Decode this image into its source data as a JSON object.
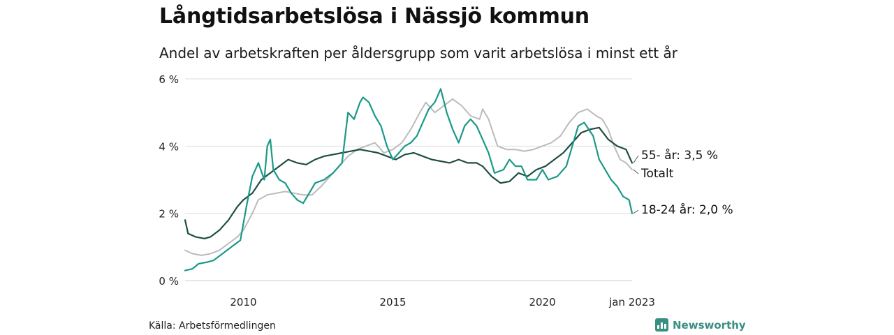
{
  "header": {
    "title": "Långtidsarbetslösa i Nässjö kommun",
    "subtitle": "Andel av arbetskraften per åldersgrupp som varit arbetslösa i minst ett år"
  },
  "footer": {
    "source": "Källa: Arbetsförmedlingen",
    "brand": "Newsworthy",
    "brand_icon": "bar-chart-logo-icon"
  },
  "chart_data": {
    "type": "line",
    "ylim": [
      0,
      6
    ],
    "xlim": [
      2008.05,
      2023.0
    ],
    "yticks": [
      {
        "value": 0,
        "label": "0 %"
      },
      {
        "value": 2,
        "label": "2 %"
      },
      {
        "value": 4,
        "label": "4 %"
      },
      {
        "value": 6,
        "label": "6 %"
      }
    ],
    "xticks": [
      {
        "value": 2010,
        "label": "2010"
      },
      {
        "value": 2015,
        "label": "2015"
      },
      {
        "value": 2020,
        "label": "2020"
      },
      {
        "value": 2023.0,
        "label": "jan 2023"
      }
    ],
    "grid": "horizontal",
    "series": [
      {
        "name": "Totalt",
        "end_label": "Totalt",
        "color": "#bbbbbb",
        "points": [
          [
            2008.05,
            0.9
          ],
          [
            2008.3,
            0.8
          ],
          [
            2008.6,
            0.75
          ],
          [
            2008.9,
            0.8
          ],
          [
            2009.2,
            0.9
          ],
          [
            2009.5,
            1.1
          ],
          [
            2009.8,
            1.3
          ],
          [
            2010.0,
            1.5
          ],
          [
            2010.3,
            2.0
          ],
          [
            2010.5,
            2.4
          ],
          [
            2010.8,
            2.55
          ],
          [
            2011.1,
            2.6
          ],
          [
            2011.4,
            2.65
          ],
          [
            2011.7,
            2.6
          ],
          [
            2012.0,
            2.55
          ],
          [
            2012.3,
            2.55
          ],
          [
            2012.6,
            2.8
          ],
          [
            2012.9,
            3.1
          ],
          [
            2013.2,
            3.4
          ],
          [
            2013.5,
            3.7
          ],
          [
            2013.8,
            3.9
          ],
          [
            2014.1,
            4.0
          ],
          [
            2014.4,
            4.1
          ],
          [
            2014.7,
            3.8
          ],
          [
            2015.0,
            3.9
          ],
          [
            2015.3,
            4.1
          ],
          [
            2015.6,
            4.5
          ],
          [
            2015.9,
            5.0
          ],
          [
            2016.1,
            5.3
          ],
          [
            2016.4,
            5.0
          ],
          [
            2016.7,
            5.2
          ],
          [
            2017.0,
            5.4
          ],
          [
            2017.3,
            5.2
          ],
          [
            2017.6,
            4.9
          ],
          [
            2017.9,
            4.8
          ],
          [
            2018.0,
            5.1
          ],
          [
            2018.2,
            4.8
          ],
          [
            2018.5,
            4.0
          ],
          [
            2018.8,
            3.9
          ],
          [
            2019.1,
            3.9
          ],
          [
            2019.4,
            3.85
          ],
          [
            2019.7,
            3.9
          ],
          [
            2020.0,
            4.0
          ],
          [
            2020.3,
            4.1
          ],
          [
            2020.6,
            4.3
          ],
          [
            2020.9,
            4.7
          ],
          [
            2021.2,
            5.0
          ],
          [
            2021.5,
            5.1
          ],
          [
            2021.8,
            4.9
          ],
          [
            2022.0,
            4.8
          ],
          [
            2022.2,
            4.5
          ],
          [
            2022.4,
            4.0
          ],
          [
            2022.6,
            3.6
          ],
          [
            2022.8,
            3.5
          ],
          [
            2023.0,
            3.3
          ]
        ]
      },
      {
        "name": "55- år",
        "end_label": "55- år: 3,5 %",
        "color": "#1f4d43",
        "points": [
          [
            2008.05,
            1.8
          ],
          [
            2008.15,
            1.4
          ],
          [
            2008.4,
            1.3
          ],
          [
            2008.7,
            1.25
          ],
          [
            2008.9,
            1.3
          ],
          [
            2009.2,
            1.5
          ],
          [
            2009.5,
            1.8
          ],
          [
            2009.8,
            2.2
          ],
          [
            2010.0,
            2.4
          ],
          [
            2010.3,
            2.6
          ],
          [
            2010.6,
            3.0
          ],
          [
            2010.9,
            3.2
          ],
          [
            2011.2,
            3.4
          ],
          [
            2011.5,
            3.6
          ],
          [
            2011.8,
            3.5
          ],
          [
            2012.1,
            3.45
          ],
          [
            2012.4,
            3.6
          ],
          [
            2012.7,
            3.7
          ],
          [
            2013.0,
            3.75
          ],
          [
            2013.3,
            3.8
          ],
          [
            2013.6,
            3.85
          ],
          [
            2013.9,
            3.9
          ],
          [
            2014.2,
            3.85
          ],
          [
            2014.5,
            3.8
          ],
          [
            2014.8,
            3.7
          ],
          [
            2015.1,
            3.6
          ],
          [
            2015.4,
            3.75
          ],
          [
            2015.7,
            3.8
          ],
          [
            2016.0,
            3.7
          ],
          [
            2016.3,
            3.6
          ],
          [
            2016.6,
            3.55
          ],
          [
            2016.9,
            3.5
          ],
          [
            2017.2,
            3.6
          ],
          [
            2017.5,
            3.5
          ],
          [
            2017.8,
            3.5
          ],
          [
            2018.0,
            3.4
          ],
          [
            2018.3,
            3.1
          ],
          [
            2018.6,
            2.9
          ],
          [
            2018.9,
            2.95
          ],
          [
            2019.2,
            3.2
          ],
          [
            2019.5,
            3.1
          ],
          [
            2019.8,
            3.3
          ],
          [
            2020.1,
            3.4
          ],
          [
            2020.4,
            3.6
          ],
          [
            2020.7,
            3.8
          ],
          [
            2021.0,
            4.1
          ],
          [
            2021.3,
            4.4
          ],
          [
            2021.6,
            4.5
          ],
          [
            2021.9,
            4.55
          ],
          [
            2022.2,
            4.2
          ],
          [
            2022.5,
            4.0
          ],
          [
            2022.8,
            3.9
          ],
          [
            2023.0,
            3.5
          ]
        ]
      },
      {
        "name": "18-24 år",
        "end_label": "18-24 år: 2,0 %",
        "color": "#1a9987",
        "points": [
          [
            2008.05,
            0.3
          ],
          [
            2008.3,
            0.35
          ],
          [
            2008.5,
            0.5
          ],
          [
            2008.8,
            0.55
          ],
          [
            2009.0,
            0.6
          ],
          [
            2009.3,
            0.8
          ],
          [
            2009.6,
            1.0
          ],
          [
            2009.9,
            1.2
          ],
          [
            2010.1,
            2.2
          ],
          [
            2010.3,
            3.1
          ],
          [
            2010.5,
            3.5
          ],
          [
            2010.7,
            3.0
          ],
          [
            2010.8,
            4.0
          ],
          [
            2010.9,
            4.2
          ],
          [
            2011.0,
            3.3
          ],
          [
            2011.2,
            3.0
          ],
          [
            2011.4,
            2.9
          ],
          [
            2011.6,
            2.6
          ],
          [
            2011.8,
            2.4
          ],
          [
            2012.0,
            2.3
          ],
          [
            2012.2,
            2.6
          ],
          [
            2012.4,
            2.9
          ],
          [
            2012.7,
            3.0
          ],
          [
            2013.0,
            3.2
          ],
          [
            2013.3,
            3.5
          ],
          [
            2013.5,
            5.0
          ],
          [
            2013.7,
            4.8
          ],
          [
            2013.9,
            5.3
          ],
          [
            2014.0,
            5.45
          ],
          [
            2014.2,
            5.3
          ],
          [
            2014.4,
            4.9
          ],
          [
            2014.6,
            4.6
          ],
          [
            2014.8,
            4.0
          ],
          [
            2015.0,
            3.6
          ],
          [
            2015.2,
            3.8
          ],
          [
            2015.4,
            4.0
          ],
          [
            2015.6,
            4.1
          ],
          [
            2015.8,
            4.3
          ],
          [
            2016.0,
            4.7
          ],
          [
            2016.2,
            5.1
          ],
          [
            2016.4,
            5.3
          ],
          [
            2016.6,
            5.7
          ],
          [
            2016.8,
            5.0
          ],
          [
            2017.0,
            4.5
          ],
          [
            2017.2,
            4.1
          ],
          [
            2017.4,
            4.6
          ],
          [
            2017.6,
            4.8
          ],
          [
            2017.8,
            4.6
          ],
          [
            2018.0,
            4.2
          ],
          [
            2018.2,
            3.8
          ],
          [
            2018.4,
            3.2
          ],
          [
            2018.7,
            3.3
          ],
          [
            2018.9,
            3.6
          ],
          [
            2019.1,
            3.4
          ],
          [
            2019.3,
            3.4
          ],
          [
            2019.5,
            3.0
          ],
          [
            2019.8,
            3.0
          ],
          [
            2020.0,
            3.3
          ],
          [
            2020.2,
            3.0
          ],
          [
            2020.5,
            3.1
          ],
          [
            2020.8,
            3.4
          ],
          [
            2021.0,
            4.0
          ],
          [
            2021.2,
            4.6
          ],
          [
            2021.4,
            4.7
          ],
          [
            2021.7,
            4.3
          ],
          [
            2021.9,
            3.6
          ],
          [
            2022.1,
            3.3
          ],
          [
            2022.3,
            3.0
          ],
          [
            2022.5,
            2.8
          ],
          [
            2022.7,
            2.5
          ],
          [
            2022.9,
            2.4
          ],
          [
            2023.0,
            2.0
          ]
        ]
      }
    ]
  }
}
